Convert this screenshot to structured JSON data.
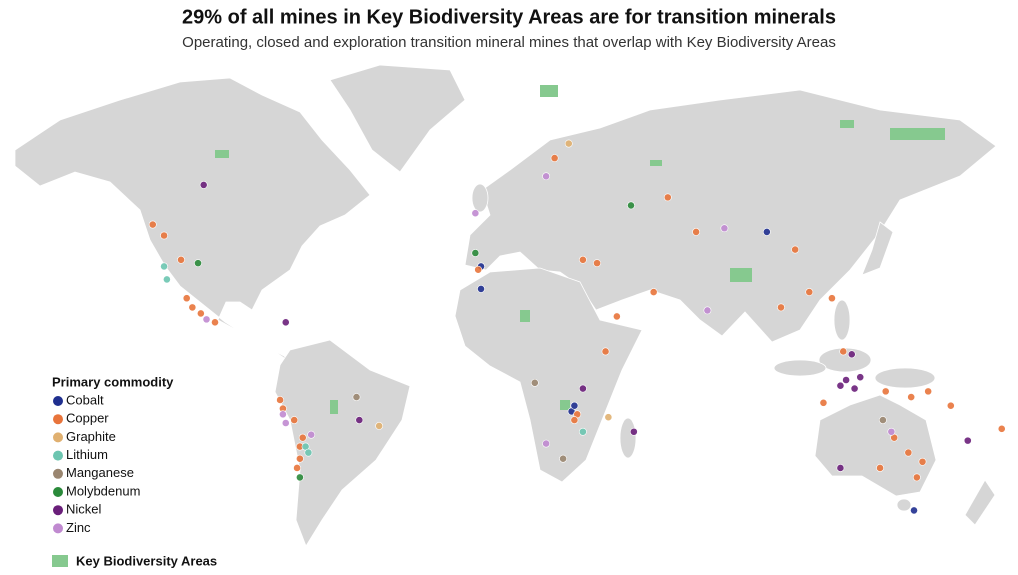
{
  "header": {
    "title": "29% of all mines in Key Biodiversity Areas are for transition minerals",
    "subtitle": "Operating, closed and exploration transition mineral mines that overlap with Key Biodiversity Areas"
  },
  "legend": {
    "title": "Primary commodity",
    "items": [
      {
        "name": "Cobalt",
        "color": "#1f2f8f",
        "mines": [
          [
            26,
            -11
          ],
          [
            27,
            -9
          ],
          [
            -6,
            38
          ],
          [
            -6,
            31
          ],
          [
            95,
            48
          ],
          [
            147,
            -43
          ]
        ]
      },
      {
        "name": "Copper",
        "color": "#e8743b",
        "mines": [
          [
            -70,
            -23
          ],
          [
            -70,
            -27
          ],
          [
            -69,
            -20
          ],
          [
            -71,
            -30
          ],
          [
            -76,
            -10
          ],
          [
            -77,
            -7
          ],
          [
            -72,
            -14
          ],
          [
            -110,
            28
          ],
          [
            -105,
            23
          ],
          [
            -100,
            20
          ],
          [
            -108,
            25
          ],
          [
            -112,
            40
          ],
          [
            -118,
            47
          ],
          [
            -122,
            50
          ],
          [
            28,
            -12
          ],
          [
            27,
            -14
          ],
          [
            140,
            -20
          ],
          [
            135,
            -30
          ],
          [
            148,
            -33
          ],
          [
            145,
            -25
          ],
          [
            150,
            -28
          ],
          [
            115,
            -8
          ],
          [
            137,
            -4
          ],
          [
            122,
            10
          ],
          [
            35,
            39
          ],
          [
            30,
            40
          ],
          [
            55,
            30
          ],
          [
            105,
            43
          ],
          [
            100,
            25
          ],
          [
            110,
            30
          ],
          [
            118,
            28
          ],
          [
            -7,
            37
          ],
          [
            70,
            48
          ],
          [
            60,
            57
          ],
          [
            20,
            66
          ],
          [
            146,
            -6
          ],
          [
            152,
            -4
          ],
          [
            160,
            -9
          ],
          [
            178,
            -17
          ],
          [
            38,
            10
          ],
          [
            42,
            22
          ]
        ]
      },
      {
        "name": "Graphite",
        "color": "#e0b070",
        "mines": [
          [
            39,
            -13
          ],
          [
            25,
            69
          ],
          [
            -42,
            -16
          ]
        ]
      },
      {
        "name": "Lithium",
        "color": "#6cc5b0",
        "mines": [
          [
            -68,
            -23
          ],
          [
            -67,
            -25
          ],
          [
            -118,
            38
          ],
          [
            -117,
            34
          ],
          [
            30,
            -18
          ]
        ]
      },
      {
        "name": "Manganese",
        "color": "#9a8670",
        "mines": [
          [
            -50,
            -6
          ],
          [
            23,
            -27
          ],
          [
            136,
            -14
          ],
          [
            13,
            -1
          ]
        ]
      },
      {
        "name": "Molybdenum",
        "color": "#2a8a3a",
        "mines": [
          [
            -70,
            -33
          ],
          [
            -8,
            42
          ],
          [
            -106,
            39
          ],
          [
            47,
            55
          ]
        ]
      },
      {
        "name": "Nickel",
        "color": "#6a1f7a",
        "mines": [
          [
            121,
            -2
          ],
          [
            123,
            0
          ],
          [
            128,
            1
          ],
          [
            126,
            -3
          ],
          [
            125,
            9
          ],
          [
            166,
            -21
          ],
          [
            -104,
            60
          ],
          [
            121,
            -30
          ],
          [
            48,
            -18
          ],
          [
            -49,
            -14
          ],
          [
            -75,
            20
          ],
          [
            30,
            -3
          ]
        ]
      },
      {
        "name": "Zinc",
        "color": "#c08ad0",
        "mines": [
          [
            -76,
            -12
          ],
          [
            -75,
            -15
          ],
          [
            -66,
            -19
          ],
          [
            -103,
            21
          ],
          [
            -8,
            53
          ],
          [
            17,
            62
          ],
          [
            17,
            -22
          ],
          [
            139,
            -18
          ],
          [
            74,
            24
          ],
          [
            80,
            49
          ]
        ]
      }
    ]
  },
  "kba_label": "Key Biodiversity Areas"
}
